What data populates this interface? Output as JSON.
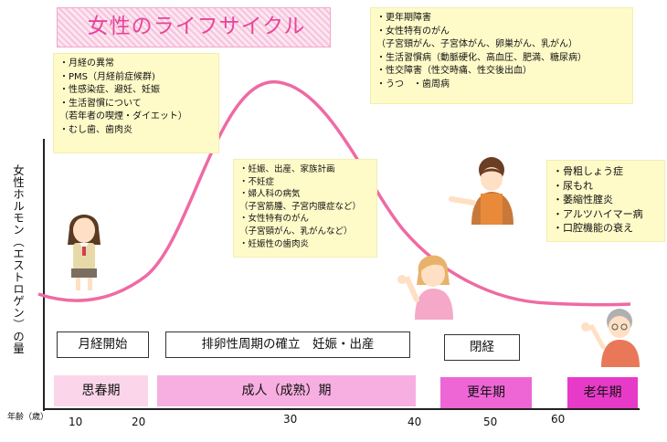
{
  "title": "女性のライフサイクル",
  "y_axis_label": "女性ホルモン（エストロゲン）の量",
  "x_axis_label": "年齢（歳）",
  "ticks": [
    "10",
    "20",
    "30",
    "40",
    "50",
    "60"
  ],
  "notes": {
    "puberty": [
      "・月経の異常",
      "・PMS（月経前症候群)",
      "・性感染症、避妊、妊娠",
      "・生活習慣について",
      "（若年者の喫煙・ダイエット）",
      "・むし歯、歯肉炎"
    ],
    "mature": [
      "・妊娠、出産、家族計画",
      "・不妊症",
      "・婦人科の病気",
      "（子宮筋腫、子宮内膜症など）",
      "・女性特有のがん",
      "（子宮頸がん、乳がんなど）",
      "・妊娠性の歯肉炎"
    ],
    "menopause": [
      "・更年期障害",
      "・女性特有のがん",
      "（子宮頸がん、子宮体がん、卵巣がん、乳がん）",
      "・生活習慣病（動脈硬化、高血圧、肥満、糖尿病）",
      "・性交障害（性交時痛、性交後出血）",
      "・うつ　・歯周病"
    ],
    "elderly": [
      "・骨粗しょう症",
      "・尿もれ",
      "・萎縮性腟炎",
      "・アルツハイマー病",
      "・口腔機能の衰え"
    ]
  },
  "events": {
    "menarche": "月経開始",
    "ovulation": "排卵性周期の確立　妊娠・出産",
    "menopause": "閉経"
  },
  "periods": {
    "puberty": "思春期",
    "mature": "成人（成熟）期",
    "climacteric": "更年期",
    "elderly": "老年期"
  },
  "colors": {
    "curve": "#ef6aa3",
    "title_text": "#e8449a",
    "note_bg": "#fffbc9",
    "puberty_bg": "#fbd6ea",
    "mature_bg": "#f7aee0",
    "climacteric_bg": "#ee66d6",
    "elderly_bg": "#e83ac8"
  }
}
